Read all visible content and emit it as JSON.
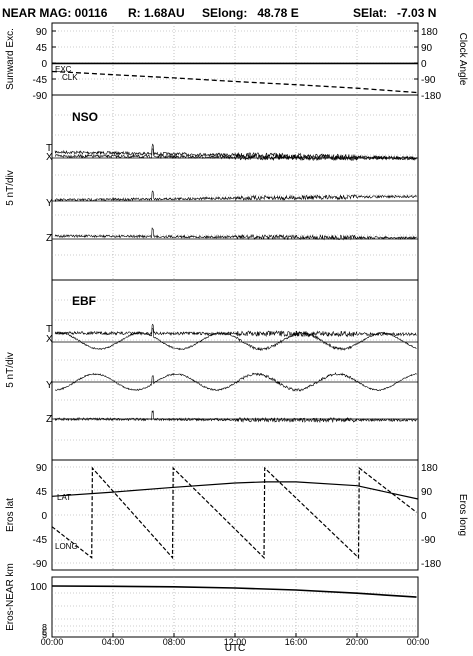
{
  "header": {
    "mission": "NEAR MAG: 00116",
    "r": "R: 1.68AU",
    "selong": "SElong:   48.78 E",
    "selat": "SElat:   -7.03 N"
  },
  "colors": {
    "ink": "#000000",
    "grid": "#9a9a9a",
    "panel_border": "#000000"
  },
  "chart_data": [
    {
      "id": "panel1",
      "type": "line",
      "ylabel": "Sunward Exc.",
      "ylabel_right": "Clock Angle",
      "yticks": [
        "90",
        "45",
        "0",
        "-45",
        "-90"
      ],
      "yticks_values": [
        90,
        45,
        0,
        -45,
        -90
      ],
      "yticks_right": [
        "180",
        "90",
        "0",
        "-90",
        "-180"
      ],
      "ylim": [
        -90,
        90
      ],
      "grid": true,
      "series": [
        {
          "name": "EXC",
          "style": "solid",
          "x": [
            0,
            2,
            6,
            12,
            18,
            22.5,
            24
          ],
          "values": [
            -1,
            -1,
            -1,
            -1,
            -1,
            -1,
            -1
          ]
        },
        {
          "name": "CLK",
          "style": "dashed",
          "x": [
            0,
            2,
            4,
            8,
            12,
            16,
            20,
            22,
            23.9
          ],
          "values": [
            -24,
            -28,
            -33,
            -42,
            -52,
            -61,
            -71,
            -77,
            -83
          ]
        }
      ]
    },
    {
      "id": "panel2",
      "type": "line",
      "title": "NSO",
      "ylabel": "5 nT/div",
      "grid": true,
      "series_labels": [
        "T",
        "X",
        "Y",
        "Z"
      ]
    },
    {
      "id": "panel3",
      "type": "line",
      "title": "EBF",
      "ylabel": "5 nT/div",
      "grid": true,
      "series_labels": [
        "T",
        "X",
        "Y",
        "Z"
      ]
    },
    {
      "id": "panel4",
      "type": "line",
      "ylabel": "Eros lat",
      "ylabel_right": "Eros long",
      "yticks": [
        "90",
        "45",
        "0",
        "-45",
        "-90"
      ],
      "yticks_values": [
        90,
        45,
        0,
        -45,
        -90
      ],
      "yticks_right": [
        "180",
        "90",
        "0",
        "-90",
        "-180"
      ],
      "ylim": [
        -90,
        90
      ],
      "grid": true,
      "series": [
        {
          "name": "LAT",
          "style": "solid",
          "x": [
            0,
            4,
            8,
            12,
            14,
            16,
            20,
            24
          ],
          "values": [
            35,
            43,
            52,
            60,
            62,
            62,
            55,
            30
          ]
        },
        {
          "name": "LONG",
          "style": "dashed",
          "x": [
            0,
            2.6,
            2.65,
            7.9,
            7.95,
            13.9,
            13.95,
            20.1,
            20.15,
            23.9
          ],
          "values": [
            -22,
            -80,
            88,
            -80,
            88,
            -80,
            88,
            -80,
            88,
            5
          ]
        }
      ]
    },
    {
      "id": "panel5",
      "type": "line",
      "ylabel": "Eros-NEAR km",
      "yscale": "log",
      "yticks": [
        "100",
        "8",
        "6",
        "5"
      ],
      "yticks_values": [
        100,
        8,
        6,
        5
      ],
      "ylim": [
        4.2,
        145
      ],
      "grid": true,
      "series": [
        {
          "name": "range",
          "style": "solid",
          "x": [
            0,
            4,
            8,
            12,
            16,
            20,
            23.9
          ],
          "values": [
            100,
            98,
            95,
            88,
            78,
            64,
            50
          ]
        }
      ]
    }
  ],
  "xaxis": {
    "label": "UTC",
    "ticks": [
      "00:00",
      "04:00",
      "08:00",
      "12:00",
      "16:00",
      "20:00",
      "00:00"
    ],
    "ticks_values": [
      0,
      4,
      8,
      12,
      16,
      20,
      24
    ],
    "xlim": [
      0,
      24
    ]
  }
}
